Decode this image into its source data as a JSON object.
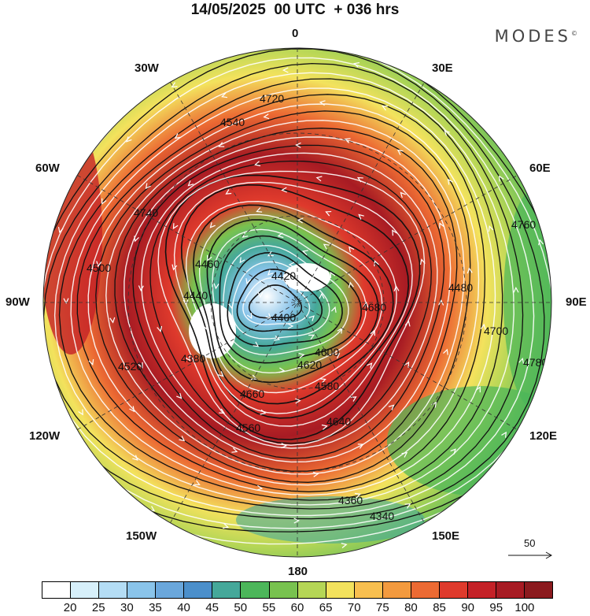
{
  "title": "14/05/2025  00 UTC  + 036 hrs",
  "brand": "MODES",
  "brand_mark": "©",
  "longitude_labels": {
    "n": "0",
    "ne": "30E",
    "e_upper": "60E",
    "e": "90E",
    "se": "120E",
    "s_e": "150E",
    "s": "180",
    "s_w": "150W",
    "sw": "120W",
    "w": "90W",
    "w_upper": "60W",
    "nw": "30W"
  },
  "contour_labels": [
    "4720",
    "4700",
    "4760",
    "4680",
    "4660",
    "4640",
    "4620",
    "4600",
    "4580",
    "4560",
    "4540",
    "4520",
    "4500",
    "4480",
    "4460",
    "4440",
    "4420",
    "4400",
    "4380",
    "4360",
    "4340",
    "4740",
    "4780"
  ],
  "colorbar": {
    "colors": [
      "#ffffff",
      "#d7f0fb",
      "#b4ddf5",
      "#8ac4ea",
      "#6aa7dc",
      "#4b8fcb",
      "#45a89a",
      "#4cb65a",
      "#78c24f",
      "#b5d656",
      "#f3e25d",
      "#f8bf4f",
      "#f39a3e",
      "#ec6a33",
      "#df3a2c",
      "#c42127",
      "#a71b23",
      "#8b1a1e"
    ],
    "ticks": [
      "20",
      "25",
      "30",
      "35",
      "40",
      "45",
      "50",
      "55",
      "60",
      "65",
      "70",
      "75",
      "80",
      "85",
      "90",
      "95",
      "100"
    ]
  },
  "vector_legend": "50"
}
